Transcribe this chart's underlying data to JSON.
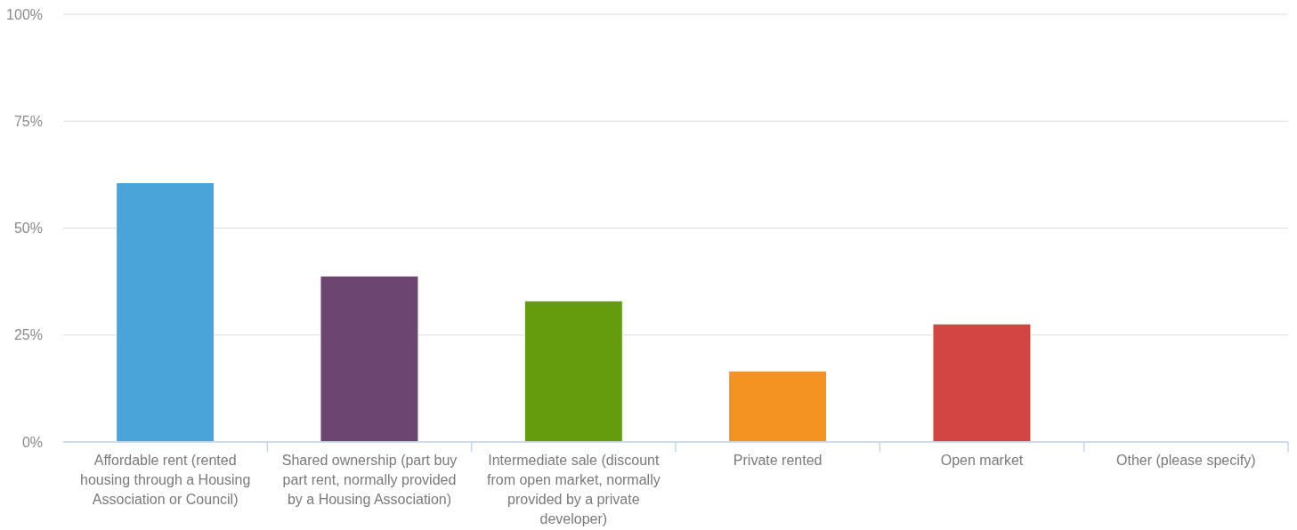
{
  "chart_data": {
    "type": "bar",
    "categories": [
      "Affordable rent (rented housing through a Housing Association or Council)",
      "Shared ownership (part buy part rent, normally provided by a Housing Association)",
      "Intermediate sale (discount from open market, normally provided by a private developer)",
      "Private rented",
      "Open market",
      "Other (please specify)"
    ],
    "values": [
      60.6,
      38.8,
      33.0,
      16.6,
      27.6,
      0
    ],
    "colors": [
      "#4aa3d9",
      "#6d4571",
      "#659c0e",
      "#f59322",
      "#d24543",
      "#888888"
    ],
    "ylim": [
      0,
      100
    ],
    "yticks": [
      {
        "value": 0,
        "label": "0%"
      },
      {
        "value": 25,
        "label": "25%"
      },
      {
        "value": 50,
        "label": "50%"
      },
      {
        "value": 75,
        "label": "75%"
      },
      {
        "value": 100,
        "label": "100%"
      }
    ],
    "grid": "y"
  }
}
